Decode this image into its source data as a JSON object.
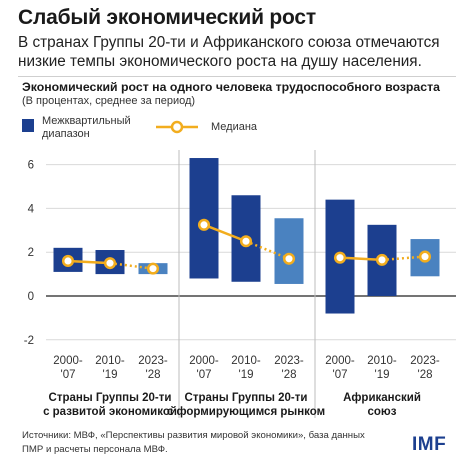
{
  "header": {
    "title": "Слабый экономический рост",
    "subtitle": "В странах Группы 20-ти и Африканского союза отмечаются низкие темпы экономического роста на душу населения."
  },
  "legend": {
    "iqr_label": "Межквартильный диапазон",
    "median_label": "Медиана"
  },
  "footer": {
    "source": "Источники: МВФ, «Перспективы развития мировой экономики», база данных ПМР и расчеты персонала МВФ.",
    "logo": "IMF"
  },
  "colors": {
    "dark_blue": "#1c3f8f",
    "light_blue": "#4a82c0",
    "median": "#f2ad1e",
    "grid": "#d9d9d9"
  },
  "chart_data": {
    "type": "bar",
    "title": "Экономический рост на одного человека трудоспособного возраста",
    "subtitle": "(В процентах, среднее за период)",
    "ylim": [
      -2.5,
      6.5
    ],
    "yticks": [
      -2,
      0,
      2,
      4,
      6
    ],
    "groups": [
      {
        "label": "Страны Группы 20-ти с развитой экономикой",
        "periods": [
          {
            "period": "2000-'07",
            "low": 1.1,
            "high": 2.2,
            "median": 1.6,
            "forecast": false
          },
          {
            "period": "2010-'19",
            "low": 1.0,
            "high": 2.1,
            "median": 1.5,
            "forecast": false
          },
          {
            "period": "2023-'28",
            "low": 1.0,
            "high": 1.5,
            "median": 1.25,
            "forecast": true
          }
        ]
      },
      {
        "label": "Страны Группы 20-ти с формирующимся рынком",
        "periods": [
          {
            "period": "2000-'07",
            "low": 0.8,
            "high": 6.3,
            "median": 3.25,
            "forecast": false
          },
          {
            "period": "2010-'19",
            "low": 0.65,
            "high": 4.6,
            "median": 2.5,
            "forecast": false
          },
          {
            "period": "2023-'28",
            "low": 0.55,
            "high": 3.55,
            "median": 1.7,
            "forecast": true
          }
        ]
      },
      {
        "label": "Африканский союз",
        "periods": [
          {
            "period": "2000-'07",
            "low": -0.8,
            "high": 4.4,
            "median": 1.75,
            "forecast": false
          },
          {
            "period": "2010-'19",
            "low": 0.0,
            "high": 3.25,
            "median": 1.65,
            "forecast": false
          },
          {
            "period": "2023-'28",
            "low": 0.9,
            "high": 2.6,
            "median": 1.8,
            "forecast": true
          }
        ]
      }
    ],
    "grid": true
  }
}
